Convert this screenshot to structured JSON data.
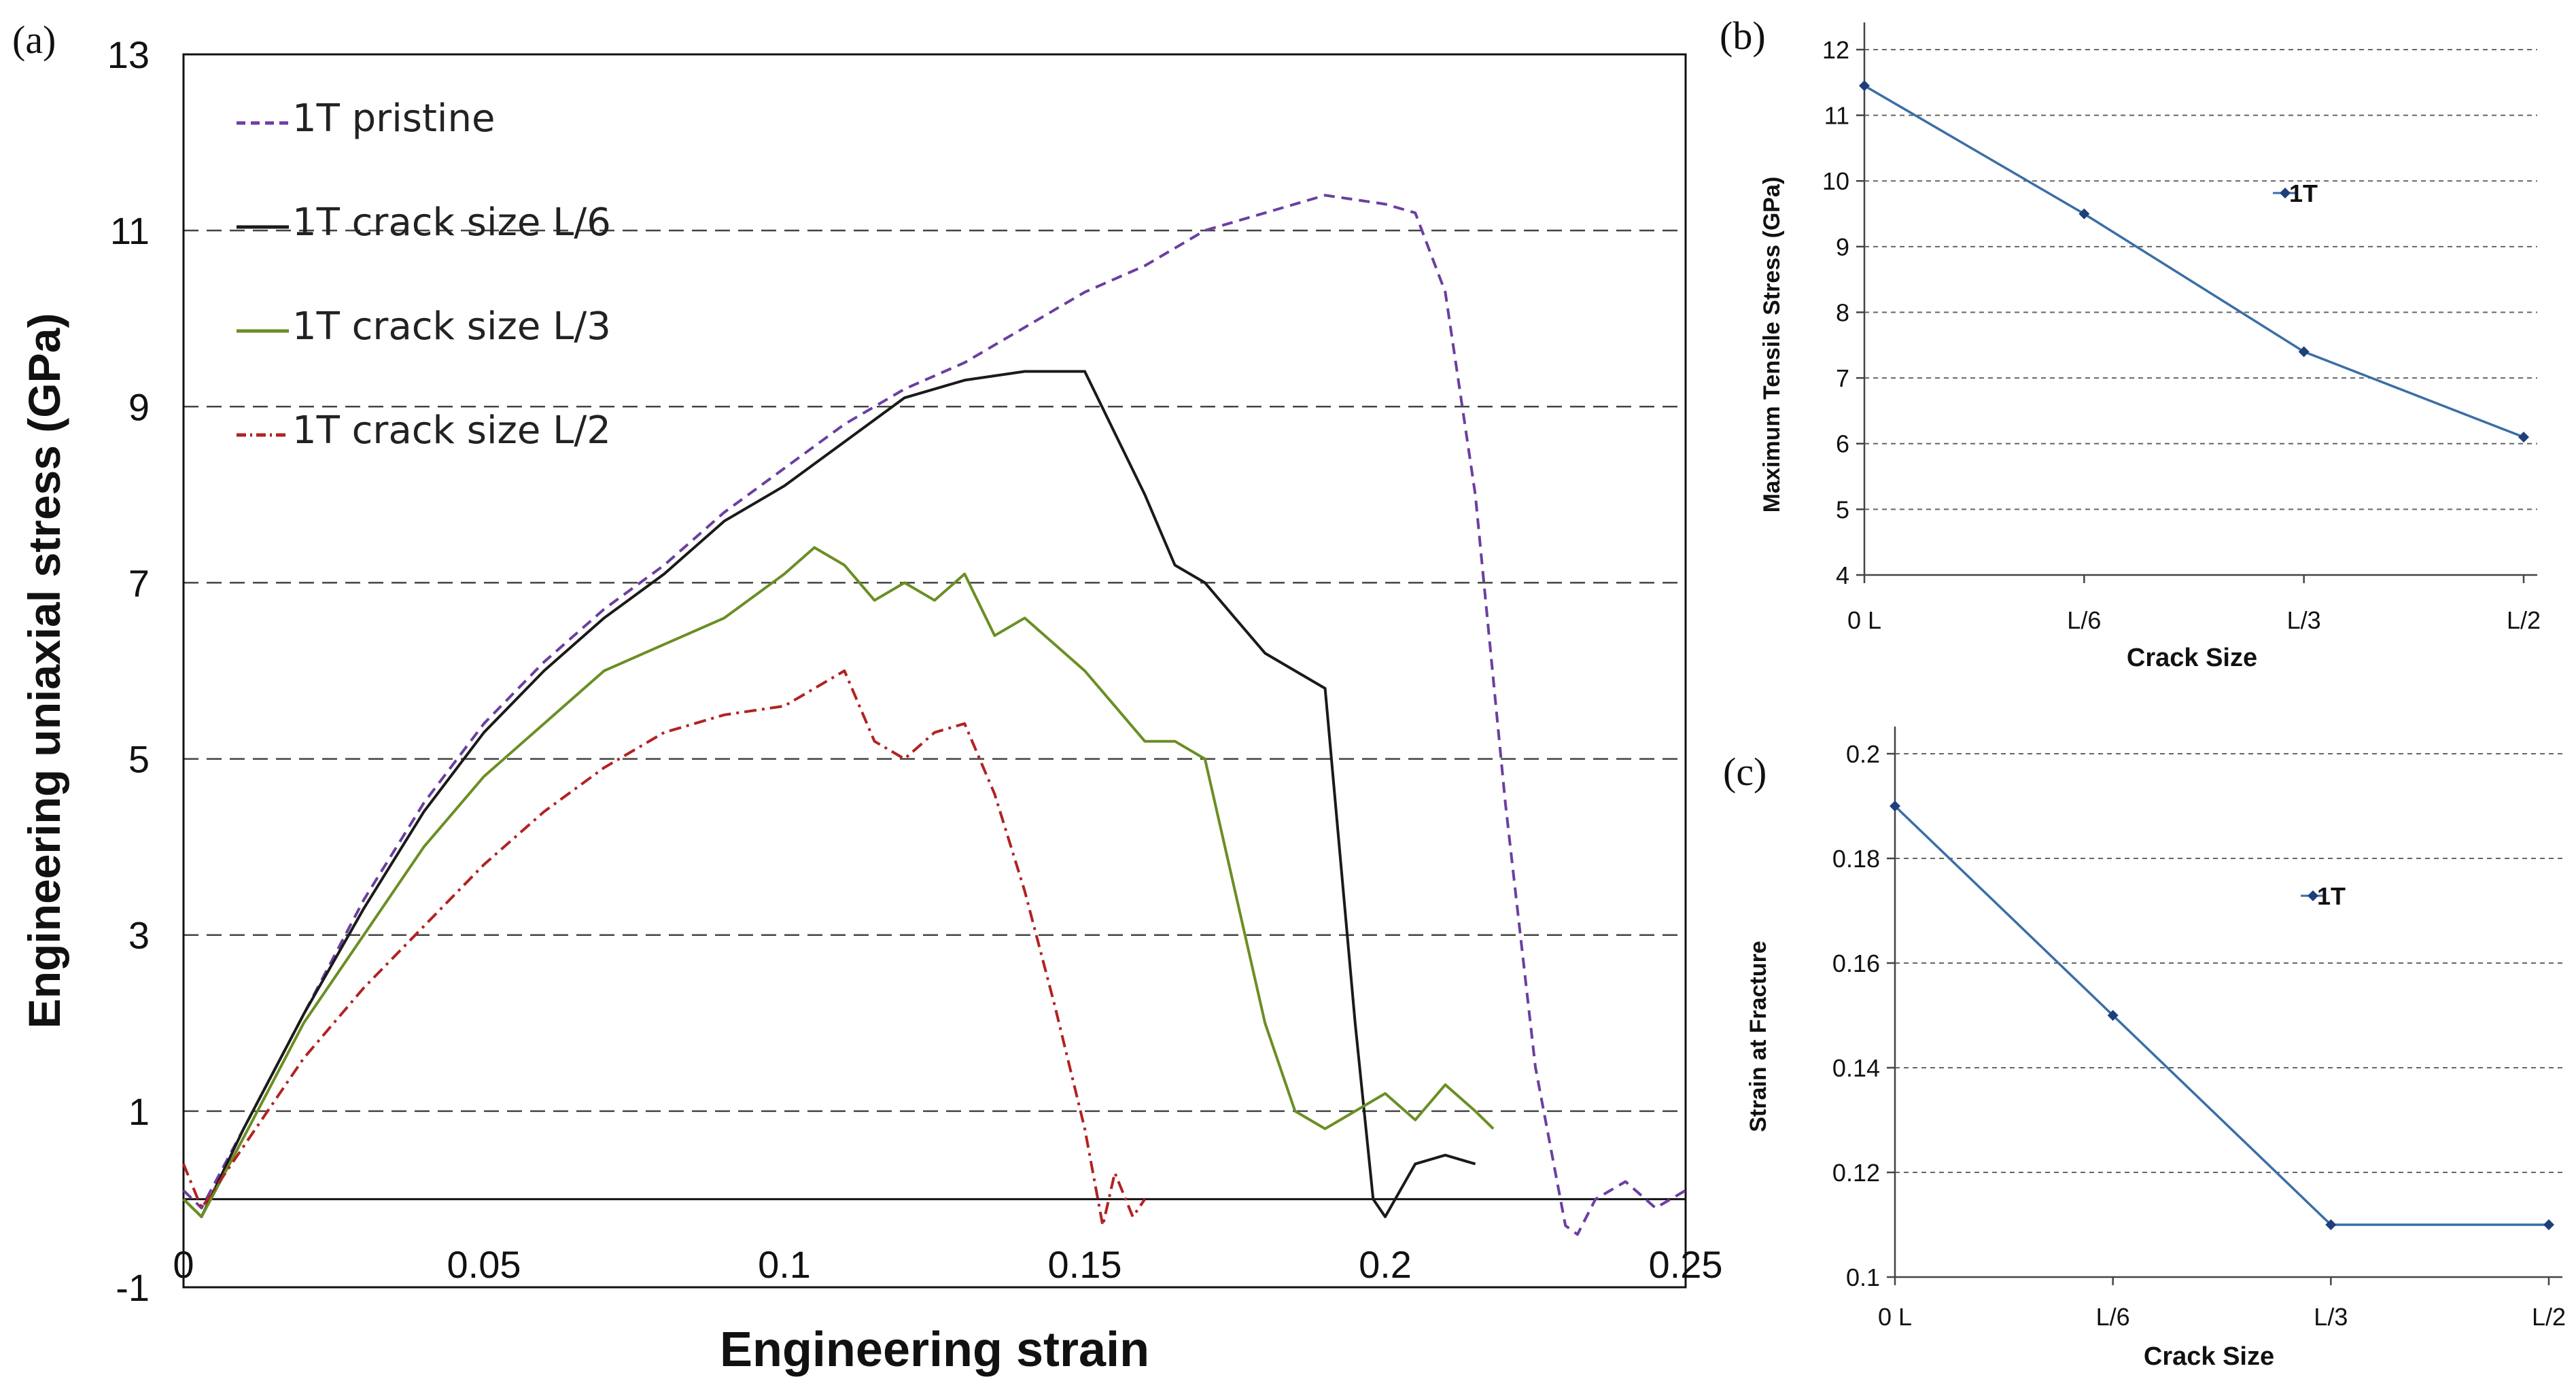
{
  "chart_data": [
    {
      "panel": "(a)",
      "type": "line",
      "xlabel": "Engineering strain",
      "ylabel": "Engineering uniaxial stress (GPa)",
      "xlim": [
        0,
        0.25
      ],
      "ylim": [
        -1,
        13
      ],
      "xticks": [
        0,
        0.05,
        0.1,
        0.15,
        0.2,
        0.25
      ],
      "xtick_labels": [
        "0",
        "0.05",
        "0.1",
        "0.15",
        "0.2",
        "0.25"
      ],
      "yticks": [
        -1,
        1,
        3,
        5,
        7,
        9,
        11,
        13
      ],
      "ytick_labels": [
        "-1",
        "1",
        "3",
        "5",
        "7",
        "9",
        "11",
        "13"
      ],
      "grid_y": [
        1,
        3,
        5,
        7,
        9,
        11
      ],
      "legend_position": "top-left",
      "series": [
        {
          "name": "1T pristine",
          "style": "dashed",
          "color": "#6b3fa0",
          "x": [
            0,
            0.003,
            0.01,
            0.02,
            0.03,
            0.04,
            0.05,
            0.06,
            0.07,
            0.08,
            0.09,
            0.1,
            0.11,
            0.12,
            0.13,
            0.14,
            0.15,
            0.16,
            0.17,
            0.18,
            0.19,
            0.2,
            0.205,
            0.21,
            0.215,
            0.22,
            0.225,
            0.23,
            0.232,
            0.235,
            0.24,
            0.245,
            0.25
          ],
          "y": [
            0.1,
            -0.1,
            0.8,
            2.1,
            3.4,
            4.5,
            5.4,
            6.1,
            6.7,
            7.2,
            7.8,
            8.3,
            8.8,
            9.2,
            9.5,
            9.9,
            10.3,
            10.6,
            11.0,
            11.2,
            11.4,
            11.3,
            11.2,
            10.3,
            8.0,
            4.5,
            1.5,
            -0.3,
            -0.4,
            0.0,
            0.2,
            -0.1,
            0.1
          ]
        },
        {
          "name": "1T crack size L/6",
          "style": "solid",
          "color": "#1a1a1a",
          "x": [
            0,
            0.003,
            0.01,
            0.02,
            0.03,
            0.04,
            0.05,
            0.06,
            0.07,
            0.08,
            0.09,
            0.1,
            0.11,
            0.12,
            0.13,
            0.14,
            0.15,
            0.155,
            0.16,
            0.165,
            0.17,
            0.175,
            0.18,
            0.185,
            0.19,
            0.195,
            0.198,
            0.2,
            0.205,
            0.21,
            0.215
          ],
          "y": [
            0.0,
            -0.2,
            0.8,
            2.1,
            3.3,
            4.4,
            5.3,
            6.0,
            6.6,
            7.1,
            7.7,
            8.1,
            8.6,
            9.1,
            9.3,
            9.4,
            9.4,
            8.7,
            8.0,
            7.2,
            7.0,
            6.6,
            6.2,
            6.0,
            5.8,
            2.0,
            0.0,
            -0.2,
            0.4,
            0.5,
            0.4
          ]
        },
        {
          "name": "1T crack size L/3",
          "style": "solid",
          "color": "#6b8e23",
          "x": [
            0,
            0.003,
            0.01,
            0.02,
            0.03,
            0.04,
            0.05,
            0.06,
            0.07,
            0.08,
            0.09,
            0.1,
            0.105,
            0.11,
            0.115,
            0.12,
            0.125,
            0.13,
            0.135,
            0.14,
            0.145,
            0.15,
            0.155,
            0.16,
            0.165,
            0.17,
            0.175,
            0.18,
            0.185,
            0.19,
            0.195,
            0.2,
            0.205,
            0.21,
            0.215,
            0.218
          ],
          "y": [
            0.0,
            -0.2,
            0.7,
            2.0,
            3.0,
            4.0,
            4.8,
            5.4,
            6.0,
            6.3,
            6.6,
            7.1,
            7.4,
            7.2,
            6.8,
            7.0,
            6.8,
            7.1,
            6.4,
            6.6,
            6.3,
            6.0,
            5.6,
            5.2,
            5.2,
            5.0,
            3.5,
            2.0,
            1.0,
            0.8,
            1.0,
            1.2,
            0.9,
            1.3,
            1.0,
            0.8
          ]
        },
        {
          "name": "1T crack size L/2",
          "style": "dash-dot",
          "color": "#b22222",
          "x": [
            0,
            0.003,
            0.01,
            0.02,
            0.03,
            0.04,
            0.05,
            0.06,
            0.07,
            0.08,
            0.09,
            0.1,
            0.11,
            0.115,
            0.12,
            0.125,
            0.13,
            0.135,
            0.14,
            0.145,
            0.15,
            0.153,
            0.155,
            0.158,
            0.16
          ],
          "y": [
            0.4,
            -0.1,
            0.6,
            1.6,
            2.4,
            3.1,
            3.8,
            4.4,
            4.9,
            5.3,
            5.5,
            5.6,
            6.0,
            5.2,
            5.0,
            5.3,
            5.4,
            4.6,
            3.5,
            2.2,
            0.8,
            -0.3,
            0.3,
            -0.2,
            0.0
          ]
        }
      ]
    },
    {
      "panel": "(b)",
      "type": "line",
      "xlabel": "Crack Size",
      "ylabel": "Maximum Tensile Stress (GPa)",
      "categories": [
        "0 L",
        "L/6",
        "L/3",
        "L/2"
      ],
      "ylim": [
        4,
        12
      ],
      "yticks": [
        4,
        5,
        6,
        7,
        8,
        9,
        10,
        11,
        12
      ],
      "ytick_labels": [
        "4",
        "5",
        "6",
        "7",
        "8",
        "9",
        "10",
        "11",
        "12"
      ],
      "series": [
        {
          "name": "1T",
          "color": "#3a6ea5",
          "values": [
            11.45,
            9.5,
            7.4,
            6.1
          ]
        }
      ]
    },
    {
      "panel": "(c)",
      "type": "line",
      "xlabel": "Crack Size",
      "ylabel": "Strain at Fracture",
      "categories": [
        "0 L",
        "L/6",
        "L/3",
        "L/2"
      ],
      "ylim": [
        0.1,
        0.2
      ],
      "yticks": [
        0.1,
        0.12,
        0.14,
        0.16,
        0.18,
        0.2
      ],
      "ytick_labels": [
        "0.1",
        "0.12",
        "0.14",
        "0.16",
        "0.18",
        "0.2"
      ],
      "series": [
        {
          "name": "1T",
          "color": "#3a6ea5",
          "values": [
            0.19,
            0.15,
            0.11,
            0.11
          ]
        }
      ]
    }
  ]
}
